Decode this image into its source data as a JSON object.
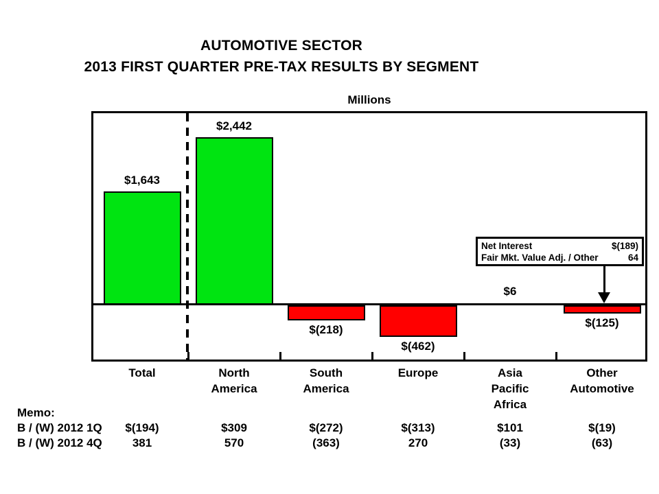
{
  "title": {
    "line1": "AUTOMOTIVE SECTOR",
    "line2": "2013 FIRST QUARTER PRE-TAX RESULTS BY SEGMENT"
  },
  "chart_data": {
    "type": "bar",
    "title": "Millions",
    "categories": [
      "Total",
      "North America",
      "South America",
      "Europe",
      "Asia Pacific Africa",
      "Other Automotive"
    ],
    "category_label_lines": [
      [
        "Total"
      ],
      [
        "North",
        "America"
      ],
      [
        "South",
        "America"
      ],
      [
        "Europe"
      ],
      [
        "Asia",
        "Pacific",
        "Africa"
      ],
      [
        "Other",
        "Automotive"
      ]
    ],
    "values": [
      1643,
      2442,
      -218,
      -462,
      6,
      -125
    ],
    "value_labels": [
      "$1,643",
      "$2,442",
      "$(218)",
      "$(462)",
      "$6",
      "$(125)"
    ],
    "ylim": [
      -830,
      2790
    ],
    "grid": "off",
    "legend": "none",
    "separator": "dashed line between Total and segment bars",
    "colors": {
      "positive": "#00E411",
      "negative": "#FF0000",
      "ink": "#000000"
    }
  },
  "annotation": {
    "rows": [
      {
        "label": "Net Interest",
        "value": "$(189)"
      },
      {
        "label": "Fair Mkt. Value Adj. / Other",
        "value": "64"
      }
    ],
    "arrow_target": "Other Automotive bar"
  },
  "memo": {
    "heading": "Memo:",
    "rows": [
      {
        "label": "B / (W) 2012 1Q",
        "values": [
          "$(194)",
          "$309",
          "$(272)",
          "$(313)",
          "$101",
          "$(19)"
        ]
      },
      {
        "label": "B / (W) 2012 4Q",
        "values": [
          "381",
          "570",
          "(363)",
          "270",
          "(33)",
          "(63)"
        ]
      }
    ]
  }
}
